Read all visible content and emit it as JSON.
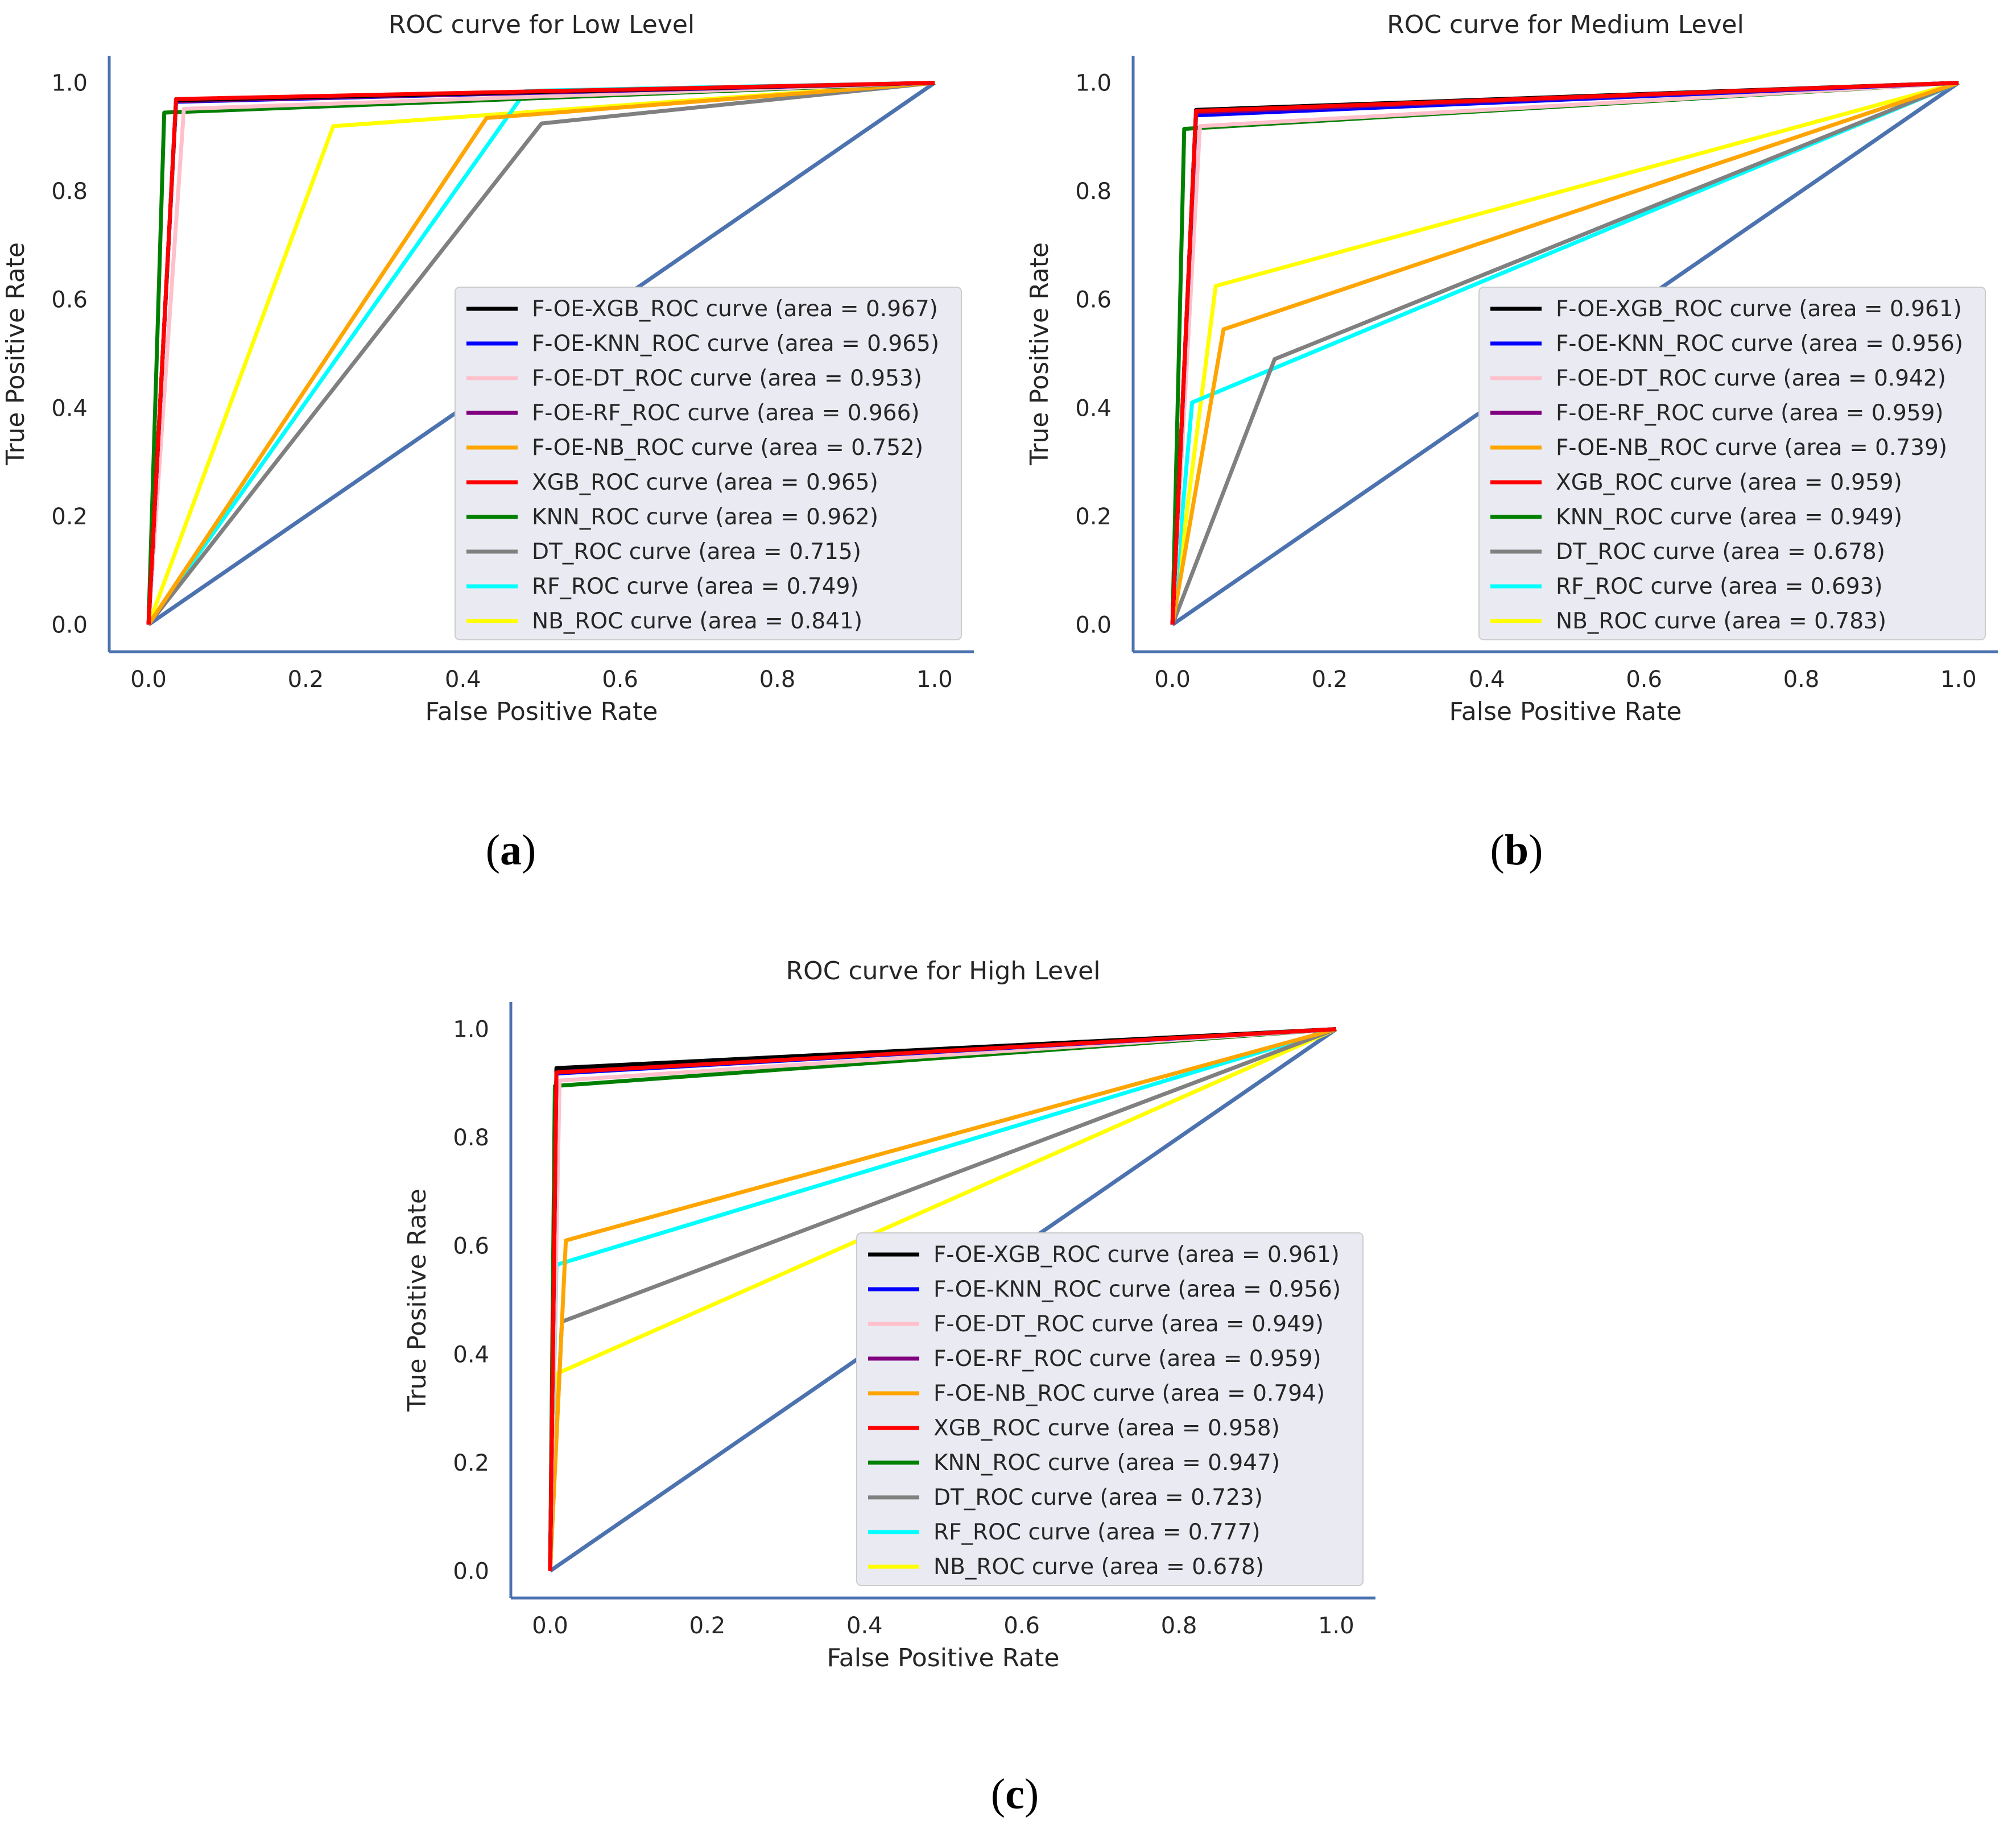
{
  "chart_data": [
    {
      "type": "line",
      "panel": "a",
      "title": "ROC curve for Low Level",
      "xlabel": "False Positive Rate",
      "ylabel": "True Positive Rate",
      "xlim": [
        -0.05,
        1.05
      ],
      "ylim": [
        -0.05,
        1.05
      ],
      "xticks": [
        "0.0",
        "0.2",
        "0.4",
        "0.6",
        "0.8",
        "1.0"
      ],
      "yticks": [
        "0.0",
        "0.2",
        "0.4",
        "0.6",
        "0.8",
        "1.0"
      ],
      "legend_position": "lower-right",
      "diagonal": {
        "x": [
          0,
          1
        ],
        "y": [
          0,
          1
        ],
        "color": "#4C72B0"
      },
      "series": [
        {
          "name": "F-OE-XGB_ROC curve (area = 0.967)",
          "color": "#000000",
          "x": [
            0,
            0.035,
            1
          ],
          "y": [
            0,
            0.968,
            1
          ]
        },
        {
          "name": "F-OE-KNN_ROC curve (area = 0.965)",
          "color": "#0000FF",
          "x": [
            0,
            0.035,
            1
          ],
          "y": [
            0,
            0.965,
            1
          ]
        },
        {
          "name": "F-OE-DT_ROC curve (area = 0.953)",
          "color": "#FFC0CB",
          "x": [
            0,
            0.045,
            1
          ],
          "y": [
            0,
            0.952,
            1
          ]
        },
        {
          "name": "F-OE-RF_ROC curve (area = 0.966)",
          "color": "#800080",
          "x": [
            0,
            0.035,
            1
          ],
          "y": [
            0,
            0.966,
            1
          ]
        },
        {
          "name": "F-OE-NB_ROC curve (area = 0.752)",
          "color": "#FFA500",
          "x": [
            0,
            0.43,
            1
          ],
          "y": [
            0,
            0.935,
            1
          ]
        },
        {
          "name": "XGB_ROC curve (area = 0.965)",
          "color": "#FF0000",
          "x": [
            0,
            0.035,
            1
          ],
          "y": [
            0,
            0.97,
            1
          ]
        },
        {
          "name": "KNN_ROC curve (area = 0.962)",
          "color": "#008000",
          "x": [
            0,
            0.02,
            1
          ],
          "y": [
            0,
            0.945,
            1
          ]
        },
        {
          "name": "DT_ROC curve (area = 0.715)",
          "color": "#808080",
          "x": [
            0,
            0.5,
            1
          ],
          "y": [
            0,
            0.925,
            1
          ]
        },
        {
          "name": "RF_ROC curve (area = 0.749)",
          "color": "#00FFFF",
          "x": [
            0,
            0.48,
            1
          ],
          "y": [
            0,
            0.985,
            1
          ]
        },
        {
          "name": "NB_ROC curve (area = 0.841)",
          "color": "#FFFF00",
          "x": [
            0,
            0.235,
            1
          ],
          "y": [
            0,
            0.92,
            1
          ]
        }
      ]
    },
    {
      "type": "line",
      "panel": "b",
      "title": "ROC curve for Medium Level",
      "xlabel": "False Positive Rate",
      "ylabel": "True Positive Rate",
      "xlim": [
        -0.05,
        1.05
      ],
      "ylim": [
        -0.05,
        1.05
      ],
      "xticks": [
        "0.0",
        "0.2",
        "0.4",
        "0.6",
        "0.8",
        "1.0"
      ],
      "yticks": [
        "0.0",
        "0.2",
        "0.4",
        "0.6",
        "0.8",
        "1.0"
      ],
      "legend_position": "lower-right",
      "diagonal": {
        "x": [
          0,
          1
        ],
        "y": [
          0,
          1
        ],
        "color": "#4C72B0"
      },
      "series": [
        {
          "name": "F-OE-XGB_ROC curve (area = 0.961)",
          "color": "#000000",
          "x": [
            0,
            0.03,
            1
          ],
          "y": [
            0,
            0.95,
            1
          ]
        },
        {
          "name": "F-OE-KNN_ROC curve (area = 0.956)",
          "color": "#0000FF",
          "x": [
            0,
            0.03,
            1
          ],
          "y": [
            0,
            0.94,
            1
          ]
        },
        {
          "name": "F-OE-DT_ROC curve (area = 0.942)",
          "color": "#FFC0CB",
          "x": [
            0,
            0.035,
            1
          ],
          "y": [
            0,
            0.92,
            1
          ]
        },
        {
          "name": "F-OE-RF_ROC curve (area = 0.959)",
          "color": "#800080",
          "x": [
            0,
            0.03,
            1
          ],
          "y": [
            0,
            0.945,
            1
          ]
        },
        {
          "name": "F-OE-NB_ROC curve (area = 0.739)",
          "color": "#FFA500",
          "x": [
            0,
            0.065,
            1
          ],
          "y": [
            0,
            0.545,
            1
          ]
        },
        {
          "name": "XGB_ROC curve (area = 0.959)",
          "color": "#FF0000",
          "x": [
            0,
            0.03,
            1
          ],
          "y": [
            0,
            0.948,
            1
          ]
        },
        {
          "name": "KNN_ROC curve (area = 0.949)",
          "color": "#008000",
          "x": [
            0,
            0.015,
            1
          ],
          "y": [
            0,
            0.915,
            1
          ]
        },
        {
          "name": "DT_ROC curve (area = 0.678)",
          "color": "#808080",
          "x": [
            0,
            0.13,
            1
          ],
          "y": [
            0,
            0.49,
            1
          ]
        },
        {
          "name": "RF_ROC curve (area = 0.693)",
          "color": "#00FFFF",
          "x": [
            0,
            0.025,
            1
          ],
          "y": [
            0,
            0.41,
            1
          ]
        },
        {
          "name": "NB_ROC curve (area = 0.783)",
          "color": "#FFFF00",
          "x": [
            0,
            0.055,
            1
          ],
          "y": [
            0,
            0.625,
            1
          ]
        }
      ]
    },
    {
      "type": "line",
      "panel": "c",
      "title": "ROC curve for High Level",
      "xlabel": "False Positive Rate",
      "ylabel": "True Positive Rate",
      "xlim": [
        -0.05,
        1.05
      ],
      "ylim": [
        -0.05,
        1.05
      ],
      "xticks": [
        "0.0",
        "0.2",
        "0.4",
        "0.6",
        "0.8",
        "1.0"
      ],
      "yticks": [
        "0.0",
        "0.2",
        "0.4",
        "0.6",
        "0.8",
        "1.0"
      ],
      "legend_position": "lower-right",
      "diagonal": {
        "x": [
          0,
          1
        ],
        "y": [
          0,
          1
        ],
        "color": "#4C72B0"
      },
      "series": [
        {
          "name": "F-OE-XGB_ROC curve (area = 0.961)",
          "color": "#000000",
          "x": [
            0,
            0.008,
            1
          ],
          "y": [
            0,
            0.928,
            1
          ]
        },
        {
          "name": "F-OE-KNN_ROC curve (area = 0.956)",
          "color": "#0000FF",
          "x": [
            0,
            0.008,
            1
          ],
          "y": [
            0,
            0.918,
            1
          ]
        },
        {
          "name": "F-OE-DT_ROC curve (area = 0.949)",
          "color": "#FFC0CB",
          "x": [
            0,
            0.012,
            1
          ],
          "y": [
            0,
            0.905,
            1
          ]
        },
        {
          "name": "F-OE-RF_ROC curve (area = 0.959)",
          "color": "#800080",
          "x": [
            0,
            0.008,
            1
          ],
          "y": [
            0,
            0.922,
            1
          ]
        },
        {
          "name": "F-OE-NB_ROC curve (area = 0.794)",
          "color": "#FFA500",
          "x": [
            0,
            0.02,
            1
          ],
          "y": [
            0,
            0.61,
            1
          ]
        },
        {
          "name": "XGB_ROC curve (area = 0.958)",
          "color": "#FF0000",
          "x": [
            0,
            0.008,
            1
          ],
          "y": [
            0,
            0.92,
            1
          ]
        },
        {
          "name": "KNN_ROC curve (area = 0.947)",
          "color": "#008000",
          "x": [
            0,
            0.006,
            1
          ],
          "y": [
            0,
            0.895,
            1
          ]
        },
        {
          "name": "DT_ROC curve (area = 0.723)",
          "color": "#808080",
          "x": [
            0,
            0.015,
            1
          ],
          "y": [
            0,
            0.46,
            1
          ]
        },
        {
          "name": "RF_ROC curve (area = 0.777)",
          "color": "#00FFFF",
          "x": [
            0,
            0.008,
            1
          ],
          "y": [
            0,
            0.565,
            1
          ]
        },
        {
          "name": "NB_ROC curve (area = 0.678)",
          "color": "#FFFF00",
          "x": [
            0,
            0.01,
            1
          ],
          "y": [
            0,
            0.365,
            1
          ]
        }
      ]
    }
  ],
  "captions": {
    "a": {
      "open": "(",
      "letter": "a",
      "close": ")"
    },
    "b": {
      "open": "(",
      "letter": "b",
      "close": ")"
    },
    "c": {
      "open": "(",
      "letter": "c",
      "close": ")"
    }
  }
}
